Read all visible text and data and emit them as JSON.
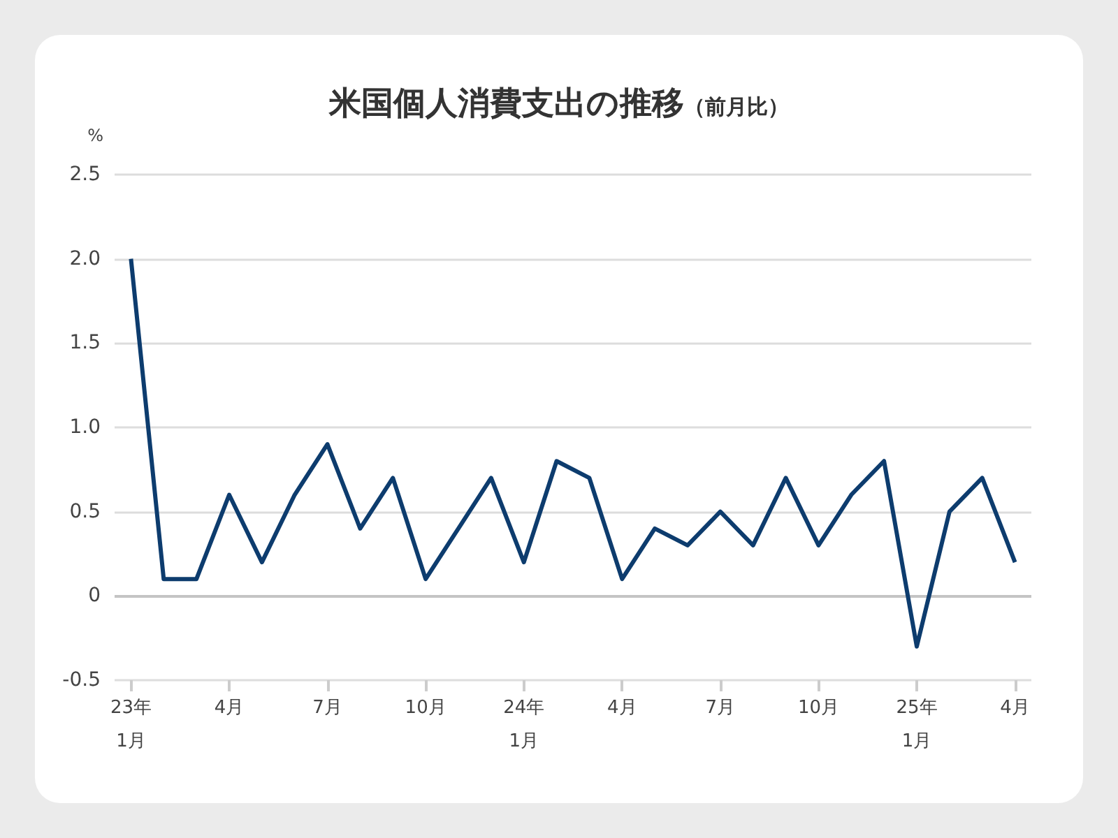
{
  "chart_data": {
    "type": "line",
    "title": "米国個人消費支出の推移",
    "subtitle": "（前月比）",
    "ylabel": "%",
    "categories": [
      "23年\n1月",
      null,
      null,
      "4月",
      null,
      null,
      "7月",
      null,
      null,
      "10月",
      null,
      null,
      "24年\n1月",
      null,
      null,
      "4月",
      null,
      null,
      "7月",
      null,
      null,
      "10月",
      null,
      null,
      "25年\n1月",
      null,
      null,
      "4月"
    ],
    "series": [
      {
        "color": "#0d3c6e",
        "values": [
          2.0,
          0.1,
          0.1,
          0.6,
          0.2,
          0.6,
          0.9,
          0.4,
          0.7,
          0.1,
          0.4,
          0.7,
          0.2,
          0.8,
          0.7,
          0.1,
          0.4,
          0.3,
          0.5,
          0.3,
          0.7,
          0.3,
          0.6,
          0.8,
          -0.3,
          0.5,
          0.7,
          0.2
        ]
      }
    ],
    "ylim": [
      -0.5,
      2.5
    ],
    "yticks": [
      -0.5,
      0,
      0.5,
      {
        "value": 1,
        "label": "1.0"
      },
      1.5,
      {
        "value": 2,
        "label": "2.0"
      },
      2.5
    ],
    "ref_lines": [
      {
        "axis": "y",
        "value": 0,
        "color": "#c4c4c4"
      }
    ],
    "grid": "y",
    "marker": "none",
    "line_style": "solid"
  }
}
